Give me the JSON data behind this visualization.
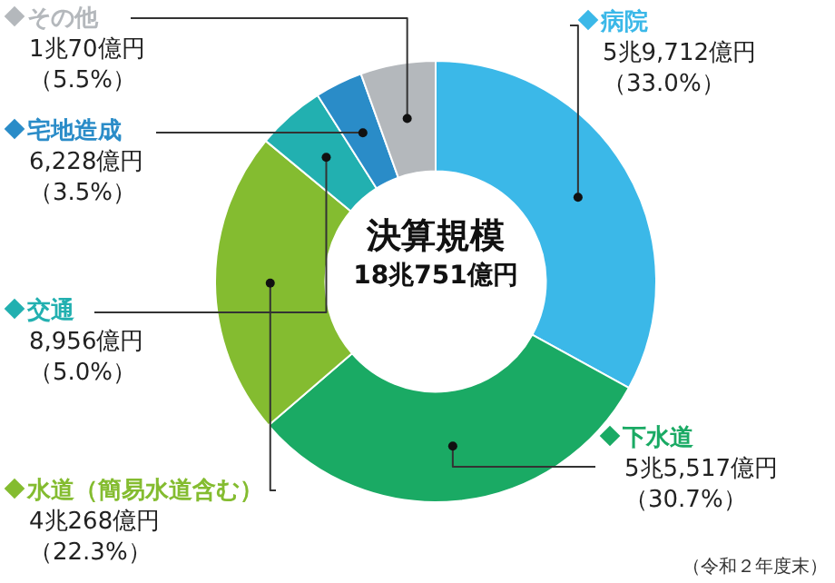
{
  "chart_data": {
    "type": "donut",
    "title": "決算規模",
    "subtitle": "18兆751億円",
    "categories": [
      "病院",
      "下水道",
      "水道（簡易水道含む）",
      "交通",
      "宅地造成",
      "その他"
    ],
    "values": [
      33.0,
      30.7,
      22.3,
      5.0,
      3.5,
      5.5
    ],
    "value_labels": [
      "5兆9,712億円（33.0%）",
      "5兆5,517億円（30.7%）",
      "4兆268億円（22.3%）",
      "8,956億円（5.0%）",
      "6,228億円（3.5%）",
      "1兆70億円（5.5%）"
    ],
    "colors": [
      "#3bb8e8",
      "#1aaa64",
      "#84bc30",
      "#22b0b0",
      "#2a8cc8",
      "#b4b8bc"
    ],
    "annotations": [
      "（令和２年度末）"
    ],
    "legend": "left"
  }
}
